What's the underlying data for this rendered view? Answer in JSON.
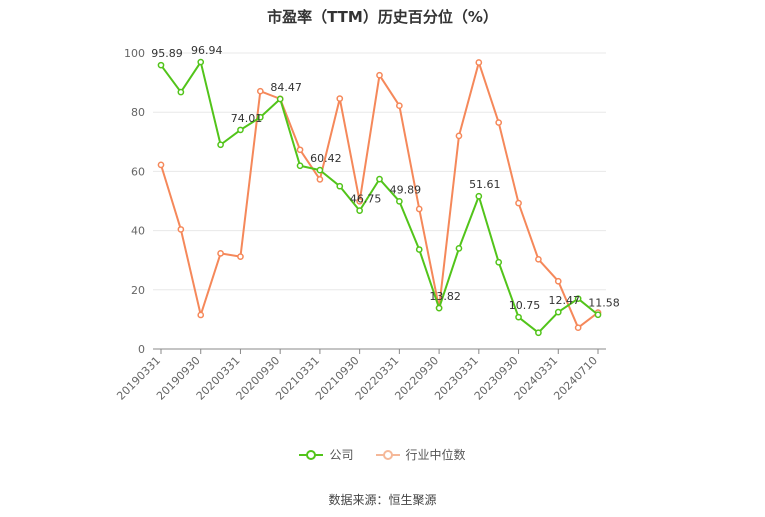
{
  "chart_data": {
    "type": "line",
    "title": "市盈率（TTM）历史百分位（%）",
    "categories": [
      "20190331",
      "20190630",
      "20190930",
      "20191231",
      "20200331",
      "20200630",
      "20200930",
      "20201231",
      "20210331",
      "20210630",
      "20210930",
      "20211231",
      "20220331",
      "20220630",
      "20220930",
      "20221231",
      "20230331",
      "20230630",
      "20230930",
      "20231231",
      "20240331",
      "20240630",
      "20240710"
    ],
    "x_tick_labels": [
      "20190331",
      "20190930",
      "20200331",
      "20200930",
      "20210331",
      "20210930",
      "20220331",
      "20220930",
      "20230331",
      "20230930",
      "20240331",
      "20240710"
    ],
    "x_tick_indices": [
      0,
      2,
      4,
      6,
      8,
      10,
      12,
      14,
      16,
      18,
      20,
      22
    ],
    "ylim": [
      0,
      100
    ],
    "yticks": [
      0,
      20,
      40,
      60,
      80,
      100
    ],
    "grid": true,
    "legend_position": "bottom",
    "series": [
      {
        "name": "公司",
        "color": "#52c41a",
        "values": [
          95.89,
          86.8,
          96.94,
          69.0,
          74.01,
          78.3,
          84.47,
          61.9,
          60.42,
          55.0,
          46.75,
          57.4,
          49.89,
          33.6,
          13.82,
          34.0,
          51.61,
          29.3,
          10.75,
          5.5,
          12.47,
          17.0,
          11.58
        ],
        "labels": {
          "0": "95.89",
          "2": "96.94",
          "4": "74.01",
          "6": "84.47",
          "8": "60.42",
          "10": "46.75",
          "12": "49.89",
          "14": "13.82",
          "16": "51.61",
          "18": "10.75",
          "20": "12.47",
          "22": "11.58"
        }
      },
      {
        "name": "行业中位数",
        "color": "#f5885a",
        "values": [
          62.2,
          40.4,
          11.5,
          32.3,
          31.2,
          87.1,
          84.5,
          67.3,
          57.3,
          84.6,
          49.9,
          92.5,
          82.2,
          47.3,
          13.9,
          72.0,
          96.8,
          76.5,
          49.3,
          30.3,
          22.9,
          7.2,
          12.3
        ]
      }
    ]
  },
  "source": "数据来源：恒生聚源"
}
